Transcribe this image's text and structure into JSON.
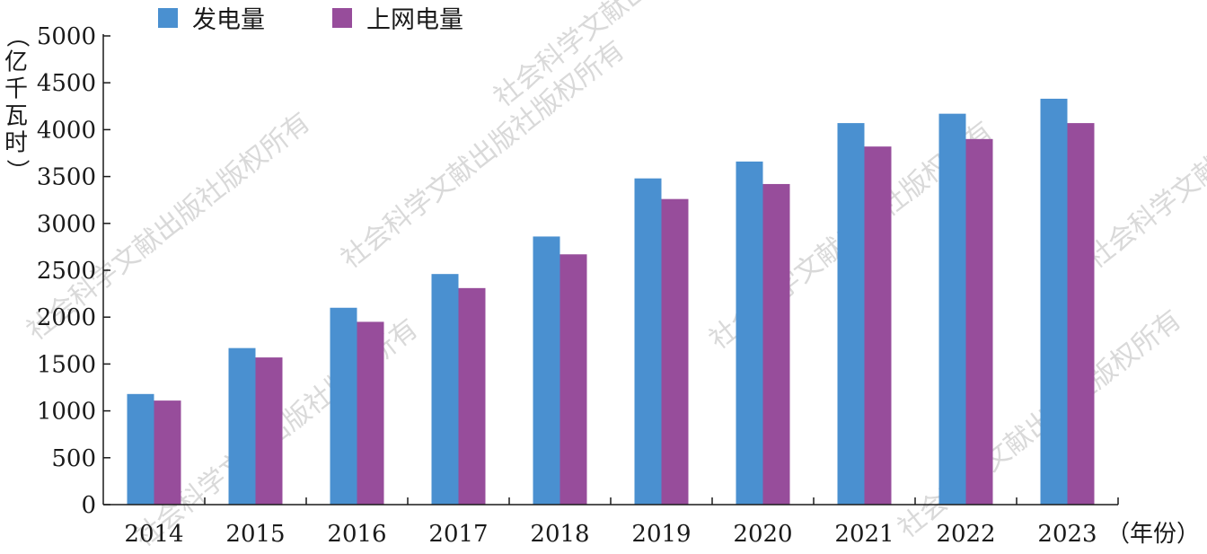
{
  "chart_data": {
    "type": "bar",
    "categories": [
      "2014",
      "2015",
      "2016",
      "2017",
      "2018",
      "2019",
      "2020",
      "2021",
      "2022",
      "2023"
    ],
    "series": [
      {
        "name": "发电量",
        "color": "#4a90d0",
        "values": [
          1180,
          1670,
          2100,
          2460,
          2860,
          3480,
          3660,
          4070,
          4170,
          4330
        ]
      },
      {
        "name": "上网电量",
        "color": "#974d9b",
        "values": [
          1110,
          1570,
          1950,
          2310,
          2670,
          3260,
          3420,
          3820,
          3900,
          4070
        ]
      }
    ],
    "ylabel": "（亿千瓦时）",
    "xlabel": "（年份）",
    "ylim": [
      0,
      5000
    ],
    "yticks": [
      0,
      500,
      1000,
      1500,
      2000,
      2500,
      3000,
      3500,
      4000,
      4500,
      5000
    ],
    "grid": false,
    "legend_position": "top"
  },
  "watermark_text": "社会科学文献出版社版权所有"
}
